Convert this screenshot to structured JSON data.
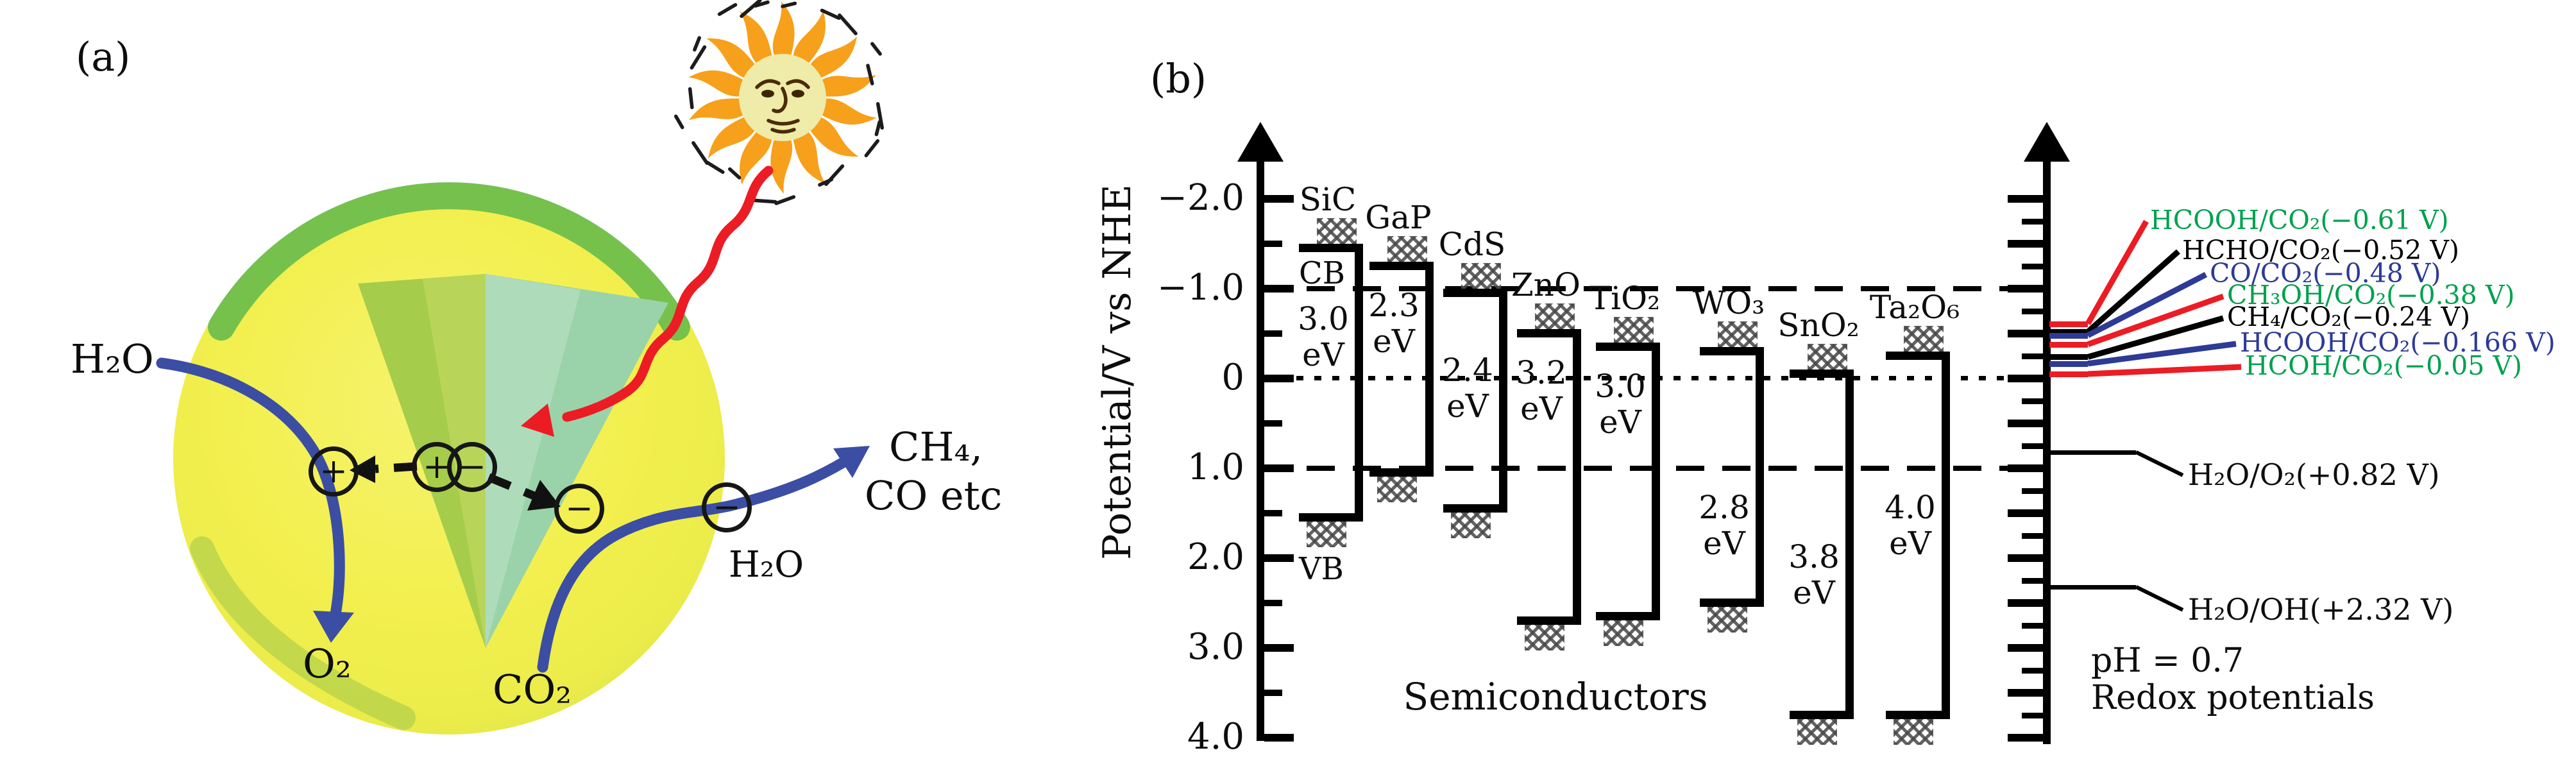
{
  "figure": {
    "panel_a": {
      "label": "(a)",
      "description": "photocatalyst sphere under sunlight splitting H2O and reducing CO2",
      "labels": {
        "h2o_in": "H₂O",
        "o2_out": "O₂",
        "co2_in": "CO₂",
        "h2o_surface": "H₂O",
        "products_line1": "CH₄,",
        "products_line2": "CO etc"
      },
      "charges": [
        {
          "symbol": "+"
        },
        {
          "symbol": "+"
        },
        {
          "symbol": "−"
        },
        {
          "symbol": "−"
        },
        {
          "symbol": "−"
        }
      ],
      "colors": {
        "sphere_yellow": "#F2EF4F",
        "wedge_green": "#A6CC4B",
        "wedge_teal": "#9AD3A9",
        "rim_green": "#5FB84C",
        "arrow_blue": "#3B4EA3",
        "arrow_red": "#EC1C24",
        "sun_orange": "#F7A01B",
        "sun_face": "#EFEBA9"
      }
    },
    "panel_b": {
      "label": "(b)"
    }
  },
  "chart_data": {
    "type": "band-diagram",
    "title": "",
    "y_axis": {
      "label": "Potential/V vs NHE",
      "unit": "V vs NHE",
      "range": [
        -2.5,
        4.1
      ],
      "inverted_down_positive": true,
      "major_ticks": [
        -2,
        -1,
        0,
        1,
        2,
        3,
        4
      ],
      "tick_labels": [
        "−2.0",
        "−1.0",
        "0",
        "1.0",
        "2.0",
        "3.0",
        "4.0"
      ],
      "minor_tick_step": 0.5
    },
    "reference_lines": [
      {
        "v": -1.0,
        "style": "dashed"
      },
      {
        "v": 0.0,
        "style": "dotted"
      },
      {
        "v": 1.0,
        "style": "dashed"
      }
    ],
    "semiconductors": [
      {
        "name": "SiC",
        "cb": -1.5,
        "vb": 1.5,
        "gap_ev": 3.0,
        "gap_label": "3.0 eV",
        "cb_label": "CB",
        "vb_label": "VB"
      },
      {
        "name": "GaP",
        "cb": -1.3,
        "vb": 1.0,
        "gap_ev": 2.3,
        "gap_label": "2.3 eV"
      },
      {
        "name": "CdS",
        "cb": -1.0,
        "vb": 1.4,
        "gap_ev": 2.4,
        "gap_label": "2.4 eV"
      },
      {
        "name": "ZnO",
        "cb": -0.55,
        "vb": 2.65,
        "gap_ev": 3.2,
        "gap_label": "3.2 eV"
      },
      {
        "name": "TiO₂",
        "cb": -0.4,
        "vb": 2.6,
        "gap_ev": 3.0,
        "gap_label": "3.0 eV"
      },
      {
        "name": "WO₃",
        "cb": -0.35,
        "vb": 2.45,
        "gap_ev": 2.8,
        "gap_label": "2.8 eV"
      },
      {
        "name": "SnO₂",
        "cb": -0.1,
        "vb": 3.7,
        "gap_ev": 3.8,
        "gap_label": "3.8 eV"
      },
      {
        "name": "Ta₂O₆",
        "cb": -0.3,
        "vb": 3.7,
        "gap_ev": 4.0,
        "gap_label": "4.0 eV"
      }
    ],
    "redox_couples": [
      {
        "label": "HCOOH/CO₂(−0.61 V)",
        "potential": -0.61,
        "color": "#00A14E",
        "line_color": "#EC1C24"
      },
      {
        "label": "HCHO/CO₂(−0.52 V)",
        "potential": -0.52,
        "color": "#000000",
        "line_color": "#000000"
      },
      {
        "label": "CO/CO₂(−0.48 V)",
        "potential": -0.48,
        "color": "#2D3A96",
        "line_color": "#2D3A96"
      },
      {
        "label": "CH₃OH/CO₂(−0.38 V)",
        "potential": -0.38,
        "color": "#00A14E",
        "line_color": "#EC1C24"
      },
      {
        "label": "CH₄/CO₂(−0.24 V)",
        "potential": -0.24,
        "color": "#000000",
        "line_color": "#000000"
      },
      {
        "label": "HCOOH/CO₂(−0.166 V)",
        "potential": -0.166,
        "color": "#2D3A96",
        "line_color": "#2D3A96"
      },
      {
        "label": "HCOH/CO₂(−0.05 V)",
        "potential": -0.05,
        "color": "#00A14E",
        "line_color": "#EC1C24"
      }
    ],
    "water_couples": [
      {
        "label": "H₂O/O₂(+0.82 V)",
        "potential": 0.82
      },
      {
        "label": "H₂O/OH(+2.32 V)",
        "potential": 2.32
      }
    ],
    "annotations": {
      "semiconductors": "Semiconductors",
      "ph": "pH = 0.7",
      "redox": "Redox potentials"
    }
  }
}
